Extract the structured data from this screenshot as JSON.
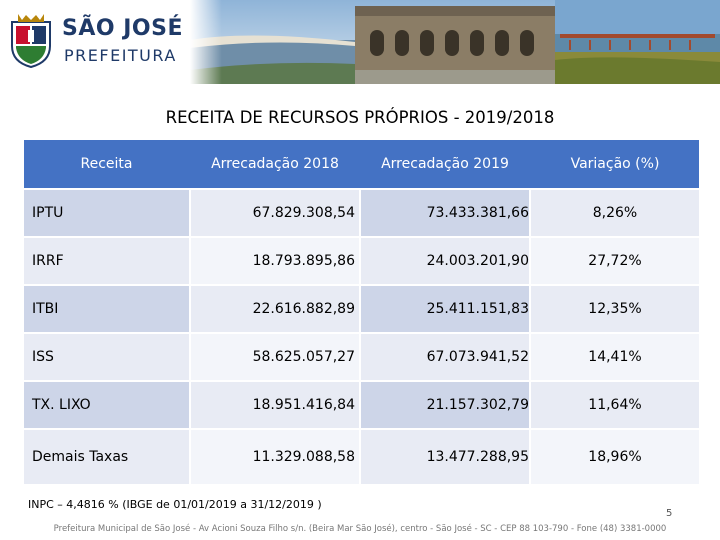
{
  "header": {
    "brand_name": "SÃO JOSÉ",
    "brand_sub": "PREFEITURA"
  },
  "title": "RECEITA DE RECURSOS PRÓPRIOS  -  2019/2018",
  "table": {
    "columns": [
      "Receita",
      "Arrecadação 2018",
      "Arrecadação 2019",
      "Variação (%)"
    ],
    "rows": [
      [
        "IPTU",
        "67.829.308,54",
        "73.433.381,66",
        "8,26%"
      ],
      [
        "IRRF",
        "18.793.895,86",
        "24.003.201,90",
        "27,72%"
      ],
      [
        "ITBI",
        "22.616.882,89",
        "25.411.151,83",
        "12,35%"
      ],
      [
        "ISS",
        "58.625.057,27",
        "67.073.941,52",
        "14,41%"
      ],
      [
        "TX. LIXO",
        "18.951.416,84",
        "21.157.302,79",
        "11,64%"
      ],
      [
        "Demais Taxas",
        "11.329.088,58",
        "13.477.288,95",
        "18,96%"
      ]
    ]
  },
  "note": "INPC – 4,4816 % (IBGE de 01/01/2019  a  31/12/2019 )",
  "page_number": "5",
  "footer": "Prefeitura Municipal de São José - Av Acioni Souza Filho s/n. (Beira Mar São José), centro - São José - SC - CEP 88 103-790 - Fone (48) 3381-0000",
  "colors": {
    "header_fill": "#4472c4",
    "band_dark": "#cdd5e8",
    "band_light": "#e8ebf4",
    "brand": "#1f3a68"
  }
}
